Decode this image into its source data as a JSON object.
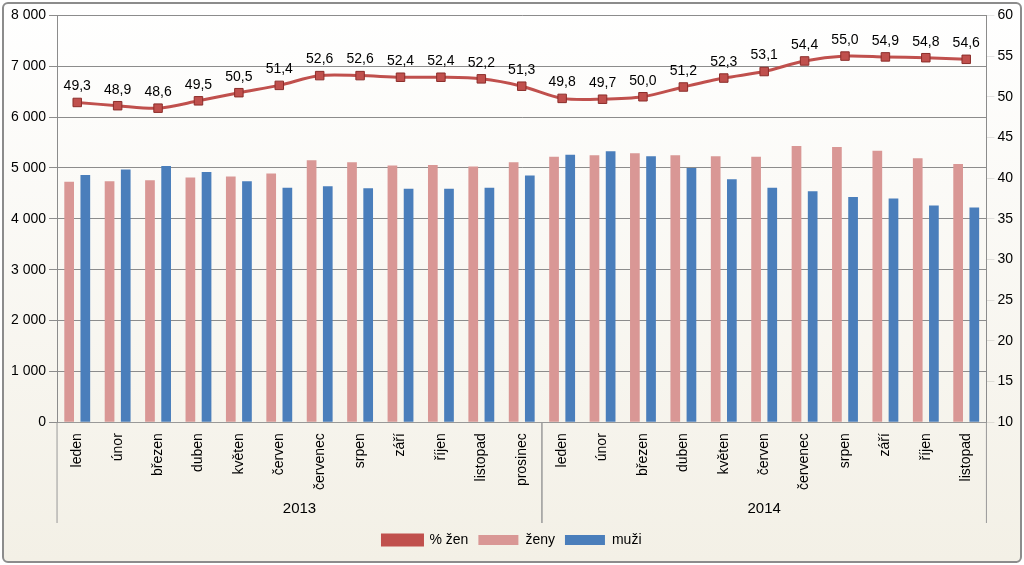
{
  "chart_data": {
    "type": "bar",
    "category_groups": [
      {
        "label": "2013",
        "categories": [
          "leden",
          "únor",
          "březen",
          "duben",
          "květen",
          "červen",
          "červenec",
          "srpen",
          "září",
          "říjen",
          "listopad",
          "prosinec"
        ]
      },
      {
        "label": "2014",
        "categories": [
          "leden",
          "únor",
          "březen",
          "duben",
          "květen",
          "červen",
          "červenec",
          "srpen",
          "září",
          "říjen",
          "listopad"
        ]
      }
    ],
    "series": [
      {
        "name": "ženy",
        "type": "bar",
        "color": "#d99795",
        "values": [
          4730,
          4740,
          4760,
          4810,
          4830,
          4890,
          5150,
          5110,
          5050,
          5060,
          5030,
          5110,
          5220,
          5250,
          5290,
          5250,
          5230,
          5220,
          5430,
          5410,
          5340,
          5190,
          5080
        ]
      },
      {
        "name": "muži",
        "type": "bar",
        "color": "#4a7ebb",
        "values": [
          4860,
          4970,
          5040,
          4920,
          4740,
          4610,
          4640,
          4600,
          4590,
          4590,
          4610,
          4850,
          5260,
          5330,
          5230,
          5000,
          4780,
          4610,
          4540,
          4430,
          4400,
          4260,
          4220
        ]
      },
      {
        "name": "% žen",
        "type": "line",
        "axis": "y2",
        "color": "#c0504d",
        "marker": "square",
        "data_labels": true,
        "values": [
          49.3,
          48.9,
          48.6,
          49.5,
          50.5,
          51.4,
          52.6,
          52.6,
          52.4,
          52.4,
          52.2,
          51.3,
          49.8,
          49.7,
          50.0,
          51.2,
          52.3,
          53.1,
          54.4,
          55.0,
          54.9,
          54.8,
          54.6
        ],
        "value_labels": [
          "49,3",
          "48,9",
          "48,6",
          "49,5",
          "50,5",
          "51,4",
          "52,6",
          "52,6",
          "52,4",
          "52,4",
          "52,2",
          "51,3",
          "49,8",
          "49,7",
          "50,0",
          "51,2",
          "52,3",
          "53,1",
          "54,4",
          "55,0",
          "54,9",
          "54,8",
          "54,6"
        ]
      }
    ],
    "ylim": [
      0,
      8000
    ],
    "yticks": [
      0,
      {
        "value": 1000,
        "label": "1 000"
      },
      {
        "value": 2000,
        "label": "2 000"
      },
      {
        "value": 3000,
        "label": "3 000"
      },
      {
        "value": 4000,
        "label": "4 000"
      },
      {
        "value": 5000,
        "label": "5 000"
      },
      {
        "value": 6000,
        "label": "6 000"
      },
      {
        "value": 7000,
        "label": "7 000"
      },
      {
        "value": 8000,
        "label": "8 000"
      }
    ],
    "y2lim": [
      10,
      60
    ],
    "y2ticks": [
      10,
      15,
      20,
      25,
      30,
      35,
      40,
      45,
      50,
      55,
      60
    ],
    "grid": true,
    "legend": "bottom"
  }
}
